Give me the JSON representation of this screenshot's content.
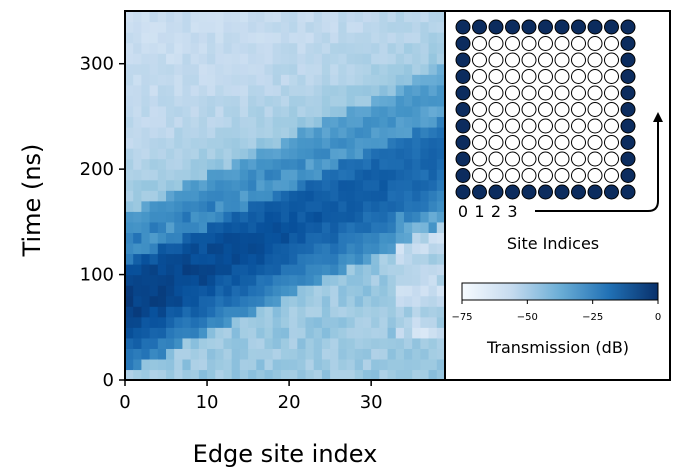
{
  "chart_data": {
    "type": "heatmap",
    "title": "",
    "xlabel": "Edge site index",
    "ylabel": "Time (ns)",
    "xlim": [
      0,
      39
    ],
    "ylim": [
      0,
      350
    ],
    "xticks": [
      0,
      10,
      20,
      30
    ],
    "yticks": [
      0,
      100,
      200,
      300
    ],
    "n_sites": 39,
    "time_step_ns": 10,
    "colorscale": "Blues",
    "colorbar": {
      "label": "Transmission (dB)",
      "range": [
        -75,
        0
      ],
      "ticks": [
        -75,
        -50,
        -25,
        0
      ],
      "tick_labels": [
        "−75",
        "−50",
        "−25",
        "0"
      ]
    },
    "pulse_front": {
      "description_free": true,
      "arrival_ns_at_site": [
        [
          0,
          30
        ],
        [
          39,
          170
        ]
      ]
    },
    "inset": {
      "grid_size": 11,
      "label": "Site Indices",
      "index_labels": [
        "0",
        "1",
        "2",
        "3"
      ],
      "edge_color": "#0c2c5e",
      "bulk_color": "#ffffff"
    }
  }
}
